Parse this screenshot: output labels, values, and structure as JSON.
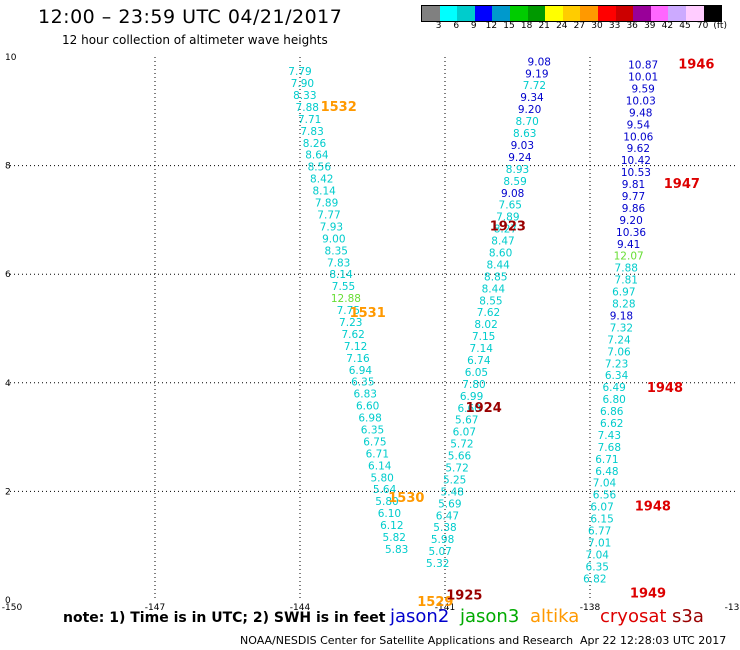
{
  "header": {
    "title": "12:00 – 23:59 UTC 04/21/2017",
    "subtitle": "12 hour collection of altimeter wave heights"
  },
  "scale": {
    "colors": [
      "#808080",
      "#00ffff",
      "#00cccc",
      "#0000ff",
      "#0099cc",
      "#00cc00",
      "#009900",
      "#ffff00",
      "#ffcc00",
      "#ff9900",
      "#ff0000",
      "#cc0000",
      "#990099",
      "#ff66ff",
      "#ccaaff",
      "#ffccff",
      "#000000"
    ],
    "labels": [
      "3",
      "6",
      "9",
      "12",
      "15",
      "18",
      "21",
      "24",
      "27",
      "30",
      "33",
      "36",
      "39",
      "42",
      "45",
      "70",
      "(ft)"
    ]
  },
  "footer": {
    "note": "note:  1) Time is in UTC;  2) SWH is in feet",
    "credit": "NOAA/NESDIS Center for Satellite Applications and Research",
    "timestamp": "Apr 22 12:28:03 UTC 2017",
    "satellites": [
      {
        "name": "jason2",
        "color": "#0000cc"
      },
      {
        "name": "jason3",
        "color": "#00aa00"
      },
      {
        "name": "altika",
        "color": "#ff9900"
      },
      {
        "name": "cryosat",
        "color": "#dd0000"
      },
      {
        "name": "s3a",
        "color": "#990000"
      }
    ]
  },
  "map": {
    "x_ticks": [
      "-150",
      "-147",
      "-144",
      "-141",
      "-138",
      "-13"
    ],
    "y_ticks": [
      "0",
      "2",
      "4",
      "6",
      "8",
      "10"
    ],
    "x_range": [
      -150,
      -135
    ],
    "y_range": [
      0,
      10
    ],
    "tracks": [
      {
        "name": "track-west",
        "labels": [
          {
            "text": "1532",
            "x": -143.2,
            "y": 9.1,
            "color": "#ff9900"
          },
          {
            "text": "1531",
            "x": -142.6,
            "y": 5.3,
            "color": "#ff9900"
          },
          {
            "text": "1530",
            "x": -141.8,
            "y": 1.9,
            "color": "#ff9900"
          },
          {
            "text": "1529",
            "x": -141.2,
            "y": -0.02,
            "color": "#ff9900"
          }
        ],
        "points": [
          {
            "t": "7.79",
            "x": -144.0,
            "y": 9.74,
            "c": "#00cccc"
          },
          {
            "t": "7.90",
            "x": -143.95,
            "y": 9.52,
            "c": "#00cccc"
          },
          {
            "t": "8.33",
            "x": -143.9,
            "y": 9.3,
            "c": "#00cccc"
          },
          {
            "t": "7.88",
            "x": -143.85,
            "y": 9.08,
            "c": "#00cccc"
          },
          {
            "t": "7.71",
            "x": -143.8,
            "y": 8.86,
            "c": "#00cccc"
          },
          {
            "t": "7.83",
            "x": -143.75,
            "y": 8.64,
            "c": "#00cccc"
          },
          {
            "t": "8.26",
            "x": -143.7,
            "y": 8.42,
            "c": "#00cccc"
          },
          {
            "t": "8.64",
            "x": -143.65,
            "y": 8.2,
            "c": "#00cccc"
          },
          {
            "t": "8.56",
            "x": -143.6,
            "y": 7.98,
            "c": "#00cccc"
          },
          {
            "t": "8.42",
            "x": -143.55,
            "y": 7.76,
            "c": "#00cccc"
          },
          {
            "t": "8.14",
            "x": -143.5,
            "y": 7.54,
            "c": "#00cccc"
          },
          {
            "t": "7.89",
            "x": -143.45,
            "y": 7.32,
            "c": "#00cccc"
          },
          {
            "t": "7.77",
            "x": -143.4,
            "y": 7.1,
            "c": "#00cccc"
          },
          {
            "t": "7.93",
            "x": -143.35,
            "y": 6.88,
            "c": "#00cccc"
          },
          {
            "t": "9.00",
            "x": -143.3,
            "y": 6.66,
            "c": "#00cccc"
          },
          {
            "t": "8.35",
            "x": -143.25,
            "y": 6.44,
            "c": "#00cccc"
          },
          {
            "t": "7.83",
            "x": -143.2,
            "y": 6.22,
            "c": "#00cccc"
          },
          {
            "t": "8.14",
            "x": -143.15,
            "y": 6.0,
            "c": "#00cccc"
          },
          {
            "t": "7.55",
            "x": -143.1,
            "y": 5.78,
            "c": "#00cccc"
          },
          {
            "t": "12.88",
            "x": -143.05,
            "y": 5.56,
            "c": "#66dd33"
          },
          {
            "t": "7.75",
            "x": -143.0,
            "y": 5.34,
            "c": "#00cccc"
          },
          {
            "t": "7.23",
            "x": -142.95,
            "y": 5.12,
            "c": "#00cccc"
          },
          {
            "t": "7.62",
            "x": -142.9,
            "y": 4.9,
            "c": "#00cccc"
          },
          {
            "t": "7.12",
            "x": -142.85,
            "y": 4.68,
            "c": "#00cccc"
          },
          {
            "t": "7.16",
            "x": -142.8,
            "y": 4.46,
            "c": "#00cccc"
          },
          {
            "t": "6.94",
            "x": -142.75,
            "y": 4.24,
            "c": "#00cccc"
          },
          {
            "t": "6.35",
            "x": -142.7,
            "y": 4.02,
            "c": "#00cccc"
          },
          {
            "t": "6.83",
            "x": -142.65,
            "y": 3.8,
            "c": "#00cccc"
          },
          {
            "t": "6.60",
            "x": -142.6,
            "y": 3.58,
            "c": "#00cccc"
          },
          {
            "t": "6.98",
            "x": -142.55,
            "y": 3.36,
            "c": "#00cccc"
          },
          {
            "t": "6.35",
            "x": -142.5,
            "y": 3.14,
            "c": "#00cccc"
          },
          {
            "t": "6.75",
            "x": -142.45,
            "y": 2.92,
            "c": "#00cccc"
          },
          {
            "t": "6.71",
            "x": -142.4,
            "y": 2.7,
            "c": "#00cccc"
          },
          {
            "t": "6.14",
            "x": -142.35,
            "y": 2.48,
            "c": "#00cccc"
          },
          {
            "t": "5.80",
            "x": -142.3,
            "y": 2.26,
            "c": "#00cccc"
          },
          {
            "t": "5.64",
            "x": -142.25,
            "y": 2.04,
            "c": "#00cccc"
          },
          {
            "t": "5.80",
            "x": -142.2,
            "y": 1.82,
            "c": "#00cccc"
          },
          {
            "t": "6.10",
            "x": -142.15,
            "y": 1.6,
            "c": "#00cccc"
          },
          {
            "t": "6.12",
            "x": -142.1,
            "y": 1.38,
            "c": "#00cccc"
          },
          {
            "t": "5.82",
            "x": -142.05,
            "y": 1.16,
            "c": "#00cccc"
          },
          {
            "t": "5.83",
            "x": -142.0,
            "y": 0.94,
            "c": "#00cccc"
          }
        ]
      },
      {
        "name": "track-middle",
        "labels": [
          {
            "text": "1923",
            "x": -139.7,
            "y": 6.9,
            "color": "#990000"
          },
          {
            "text": "1924",
            "x": -140.2,
            "y": 3.55,
            "color": "#990000"
          },
          {
            "text": "1925",
            "x": -140.6,
            "y": 0.1,
            "color": "#990000"
          }
        ],
        "points": [
          {
            "t": "9.08",
            "x": -139.05,
            "y": 9.92,
            "c": "#0000cc"
          },
          {
            "t": "9.19",
            "x": -139.1,
            "y": 9.7,
            "c": "#0000cc"
          },
          {
            "t": "7.72",
            "x": -139.15,
            "y": 9.48,
            "c": "#00cccc"
          },
          {
            "t": "9.34",
            "x": -139.2,
            "y": 9.26,
            "c": "#0000cc"
          },
          {
            "t": "9.20",
            "x": -139.25,
            "y": 9.04,
            "c": "#0000cc"
          },
          {
            "t": "8.70",
            "x": -139.3,
            "y": 8.82,
            "c": "#00cccc"
          },
          {
            "t": "8.63",
            "x": -139.35,
            "y": 8.6,
            "c": "#00cccc"
          },
          {
            "t": "9.03",
            "x": -139.4,
            "y": 8.38,
            "c": "#0000cc"
          },
          {
            "t": "9.24",
            "x": -139.45,
            "y": 8.16,
            "c": "#0000cc"
          },
          {
            "t": "8.93",
            "x": -139.5,
            "y": 7.94,
            "c": "#00cccc"
          },
          {
            "t": "8.59",
            "x": -139.55,
            "y": 7.72,
            "c": "#00cccc"
          },
          {
            "t": "9.08",
            "x": -139.6,
            "y": 7.5,
            "c": "#0000cc"
          },
          {
            "t": "7.65",
            "x": -139.65,
            "y": 7.28,
            "c": "#00cccc"
          },
          {
            "t": "7.89",
            "x": -139.7,
            "y": 7.06,
            "c": "#00cccc"
          },
          {
            "t": "8.27",
            "x": -139.75,
            "y": 6.84,
            "c": "#00cccc"
          },
          {
            "t": "8.47",
            "x": -139.8,
            "y": 6.62,
            "c": "#00cccc"
          },
          {
            "t": "8.60",
            "x": -139.85,
            "y": 6.4,
            "c": "#00cccc"
          },
          {
            "t": "8.44",
            "x": -139.9,
            "y": 6.18,
            "c": "#00cccc"
          },
          {
            "t": "8.85",
            "x": -139.95,
            "y": 5.96,
            "c": "#00cccc"
          },
          {
            "t": "8.44",
            "x": -140.0,
            "y": 5.74,
            "c": "#00cccc"
          },
          {
            "t": "8.55",
            "x": -140.05,
            "y": 5.52,
            "c": "#00cccc"
          },
          {
            "t": "7.62",
            "x": -140.1,
            "y": 5.3,
            "c": "#00cccc"
          },
          {
            "t": "8.02",
            "x": -140.15,
            "y": 5.08,
            "c": "#00cccc"
          },
          {
            "t": "7.15",
            "x": -140.2,
            "y": 4.86,
            "c": "#00cccc"
          },
          {
            "t": "7.14",
            "x": -140.25,
            "y": 4.64,
            "c": "#00cccc"
          },
          {
            "t": "6.74",
            "x": -140.3,
            "y": 4.42,
            "c": "#00cccc"
          },
          {
            "t": "6.05",
            "x": -140.35,
            "y": 4.2,
            "c": "#00cccc"
          },
          {
            "t": "7.80",
            "x": -140.4,
            "y": 3.98,
            "c": "#00cccc"
          },
          {
            "t": "6.99",
            "x": -140.45,
            "y": 3.76,
            "c": "#00cccc"
          },
          {
            "t": "6.60",
            "x": -140.5,
            "y": 3.54,
            "c": "#00cccc"
          },
          {
            "t": "5.67",
            "x": -140.55,
            "y": 3.32,
            "c": "#00cccc"
          },
          {
            "t": "6.07",
            "x": -140.6,
            "y": 3.1,
            "c": "#00cccc"
          },
          {
            "t": "5.72",
            "x": -140.65,
            "y": 2.88,
            "c": "#00cccc"
          },
          {
            "t": "5.66",
            "x": -140.7,
            "y": 2.66,
            "c": "#00cccc"
          },
          {
            "t": "5.72",
            "x": -140.75,
            "y": 2.44,
            "c": "#00cccc"
          },
          {
            "t": "5.25",
            "x": -140.8,
            "y": 2.22,
            "c": "#00cccc"
          },
          {
            "t": "5.48",
            "x": -140.85,
            "y": 2.0,
            "c": "#00cccc"
          },
          {
            "t": "5.69",
            "x": -140.9,
            "y": 1.78,
            "c": "#00cccc"
          },
          {
            "t": "6.47",
            "x": -140.95,
            "y": 1.56,
            "c": "#00cccc"
          },
          {
            "t": "5.38",
            "x": -141.0,
            "y": 1.34,
            "c": "#00cccc"
          },
          {
            "t": "5.98",
            "x": -141.05,
            "y": 1.12,
            "c": "#00cccc"
          },
          {
            "t": "5.07",
            "x": -141.1,
            "y": 0.9,
            "c": "#00cccc"
          },
          {
            "t": "5.32",
            "x": -141.15,
            "y": 0.68,
            "c": "#00cccc"
          }
        ]
      },
      {
        "name": "track-east",
        "labels": [
          {
            "text": "1946",
            "x": -135.8,
            "y": 9.88,
            "color": "#dd0000"
          },
          {
            "text": "1947",
            "x": -136.1,
            "y": 7.68,
            "color": "#dd0000"
          },
          {
            "text": "1948",
            "x": -136.45,
            "y": 3.92,
            "color": "#dd0000"
          },
          {
            "text": "1948",
            "x": -136.7,
            "y": 1.74,
            "color": "#dd0000"
          },
          {
            "text": "1949",
            "x": -136.8,
            "y": 0.14,
            "color": "#dd0000"
          }
        ],
        "points": [
          {
            "t": "10.87",
            "x": -136.9,
            "y": 9.86,
            "c": "#0000cc"
          },
          {
            "t": "10.01",
            "x": -136.9,
            "y": 9.64,
            "c": "#0000cc"
          },
          {
            "t": "9.59",
            "x": -136.9,
            "y": 9.42,
            "c": "#0000cc"
          },
          {
            "t": "10.03",
            "x": -136.95,
            "y": 9.2,
            "c": "#0000cc"
          },
          {
            "t": "9.48",
            "x": -136.95,
            "y": 8.98,
            "c": "#0000cc"
          },
          {
            "t": "9.54",
            "x": -137.0,
            "y": 8.76,
            "c": "#0000cc"
          },
          {
            "t": "10.06",
            "x": -137.0,
            "y": 8.54,
            "c": "#0000cc"
          },
          {
            "t": "9.62",
            "x": -137.0,
            "y": 8.32,
            "c": "#0000cc"
          },
          {
            "t": "10.42",
            "x": -137.05,
            "y": 8.1,
            "c": "#0000cc"
          },
          {
            "t": "10.53",
            "x": -137.05,
            "y": 7.88,
            "c": "#0000cc"
          },
          {
            "t": "9.81",
            "x": -137.1,
            "y": 7.66,
            "c": "#0000cc"
          },
          {
            "t": "9.77",
            "x": -137.1,
            "y": 7.44,
            "c": "#0000cc"
          },
          {
            "t": "9.86",
            "x": -137.1,
            "y": 7.22,
            "c": "#0000cc"
          },
          {
            "t": "9.20",
            "x": -137.15,
            "y": 7.0,
            "c": "#0000cc"
          },
          {
            "t": "10.36",
            "x": -137.15,
            "y": 6.78,
            "c": "#0000cc"
          },
          {
            "t": "9.41",
            "x": -137.2,
            "y": 6.56,
            "c": "#0000cc"
          },
          {
            "t": "12.07",
            "x": -137.2,
            "y": 6.34,
            "c": "#66dd33"
          },
          {
            "t": "7.88",
            "x": -137.25,
            "y": 6.12,
            "c": "#00cccc"
          },
          {
            "t": "7.81",
            "x": -137.25,
            "y": 5.9,
            "c": "#00cccc"
          },
          {
            "t": "6.97",
            "x": -137.3,
            "y": 5.68,
            "c": "#00cccc"
          },
          {
            "t": "8.28",
            "x": -137.3,
            "y": 5.46,
            "c": "#00cccc"
          },
          {
            "t": "9.18",
            "x": -137.35,
            "y": 5.24,
            "c": "#0000cc"
          },
          {
            "t": "7.32",
            "x": -137.35,
            "y": 5.02,
            "c": "#00cccc"
          },
          {
            "t": "7.24",
            "x": -137.4,
            "y": 4.8,
            "c": "#00cccc"
          },
          {
            "t": "7.06",
            "x": -137.4,
            "y": 4.58,
            "c": "#00cccc"
          },
          {
            "t": "7.23",
            "x": -137.45,
            "y": 4.36,
            "c": "#00cccc"
          },
          {
            "t": "6.34",
            "x": -137.45,
            "y": 4.14,
            "c": "#00cccc"
          },
          {
            "t": "6.49",
            "x": -137.5,
            "y": 3.92,
            "c": "#00cccc"
          },
          {
            "t": "6.80",
            "x": -137.5,
            "y": 3.7,
            "c": "#00cccc"
          },
          {
            "t": "6.86",
            "x": -137.55,
            "y": 3.48,
            "c": "#00cccc"
          },
          {
            "t": "6.62",
            "x": -137.55,
            "y": 3.26,
            "c": "#00cccc"
          },
          {
            "t": "7.43",
            "x": -137.6,
            "y": 3.04,
            "c": "#00cccc"
          },
          {
            "t": "7.68",
            "x": -137.6,
            "y": 2.82,
            "c": "#00cccc"
          },
          {
            "t": "6.71",
            "x": -137.65,
            "y": 2.6,
            "c": "#00cccc"
          },
          {
            "t": "6.48",
            "x": -137.65,
            "y": 2.38,
            "c": "#00cccc"
          },
          {
            "t": "7.04",
            "x": -137.7,
            "y": 2.16,
            "c": "#00cccc"
          },
          {
            "t": "6.56",
            "x": -137.7,
            "y": 1.94,
            "c": "#00cccc"
          },
          {
            "t": "6.07",
            "x": -137.75,
            "y": 1.72,
            "c": "#00cccc"
          },
          {
            "t": "6.15",
            "x": -137.75,
            "y": 1.5,
            "c": "#00cccc"
          },
          {
            "t": "6.77",
            "x": -137.8,
            "y": 1.28,
            "c": "#00cccc"
          },
          {
            "t": "7.01",
            "x": -137.8,
            "y": 1.06,
            "c": "#00cccc"
          },
          {
            "t": "7.04",
            "x": -137.85,
            "y": 0.84,
            "c": "#00cccc"
          },
          {
            "t": "6.35",
            "x": -137.85,
            "y": 0.62,
            "c": "#00cccc"
          },
          {
            "t": "6.82",
            "x": -137.9,
            "y": 0.4,
            "c": "#00cccc"
          }
        ]
      }
    ]
  }
}
